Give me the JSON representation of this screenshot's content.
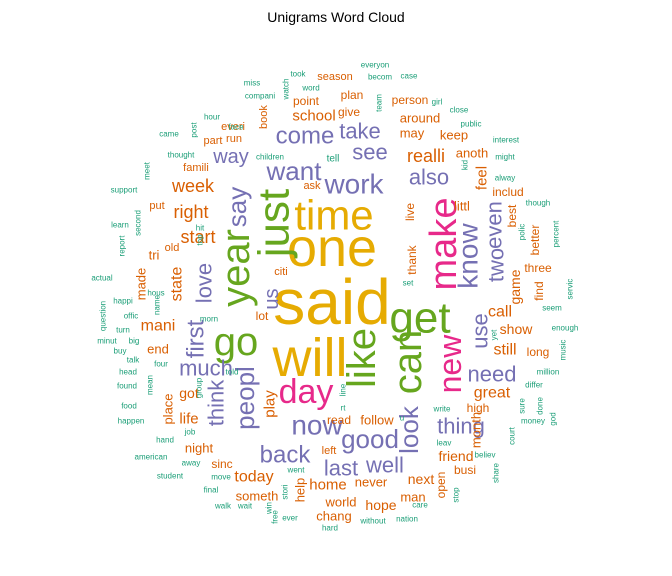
{
  "title": "Unigrams Word Cloud",
  "colors": {
    "gold": "#E6AB02",
    "green": "#66A61E",
    "pink": "#E7298A",
    "purple": "#7570B3",
    "orange": "#D95F02",
    "teal": "#1B9E77"
  },
  "words": [
    {
      "text": "said",
      "color": "gold"
    },
    {
      "text": "one",
      "color": "gold"
    },
    {
      "text": "will",
      "color": "gold"
    },
    {
      "text": "time",
      "color": "gold"
    },
    {
      "text": "like",
      "color": "green"
    },
    {
      "text": "get",
      "color": "green"
    },
    {
      "text": "just",
      "color": "green"
    },
    {
      "text": "can",
      "color": "green"
    },
    {
      "text": "go",
      "color": "green"
    },
    {
      "text": "year",
      "color": "green"
    },
    {
      "text": "make",
      "color": "pink"
    },
    {
      "text": "day",
      "color": "pink"
    },
    {
      "text": "new",
      "color": "pink"
    },
    {
      "text": "say",
      "color": "purple"
    },
    {
      "text": "know",
      "color": "purple"
    },
    {
      "text": "work",
      "color": "purple"
    },
    {
      "text": "want",
      "color": "purple"
    },
    {
      "text": "peopl",
      "color": "purple"
    },
    {
      "text": "now",
      "color": "purple"
    },
    {
      "text": "look",
      "color": "purple"
    },
    {
      "text": "good",
      "color": "purple"
    },
    {
      "text": "first",
      "color": "purple"
    },
    {
      "text": "come",
      "color": "purple"
    },
    {
      "text": "take",
      "color": "purple"
    },
    {
      "text": "see",
      "color": "purple"
    },
    {
      "text": "also",
      "color": "purple"
    },
    {
      "text": "back",
      "color": "purple"
    },
    {
      "text": "think",
      "color": "purple"
    },
    {
      "text": "love",
      "color": "purple"
    },
    {
      "text": "thing",
      "color": "purple"
    },
    {
      "text": "last",
      "color": "purple"
    },
    {
      "text": "well",
      "color": "purple"
    },
    {
      "text": "much",
      "color": "purple"
    },
    {
      "text": "need",
      "color": "purple"
    },
    {
      "text": "use",
      "color": "purple"
    },
    {
      "text": "two",
      "color": "purple"
    },
    {
      "text": "even",
      "color": "purple"
    },
    {
      "text": "way",
      "color": "purple"
    },
    {
      "text": "us",
      "color": "purple"
    },
    {
      "text": "realli",
      "color": "orange"
    },
    {
      "text": "week",
      "color": "orange"
    },
    {
      "text": "right",
      "color": "orange"
    },
    {
      "text": "start",
      "color": "orange"
    },
    {
      "text": "great",
      "color": "orange"
    },
    {
      "text": "still",
      "color": "orange"
    },
    {
      "text": "call",
      "color": "orange"
    },
    {
      "text": "show",
      "color": "orange"
    },
    {
      "text": "mani",
      "color": "orange"
    },
    {
      "text": "school",
      "color": "orange"
    },
    {
      "text": "state",
      "color": "orange"
    },
    {
      "text": "play",
      "color": "orange"
    },
    {
      "text": "home",
      "color": "orange"
    },
    {
      "text": "today",
      "color": "orange"
    },
    {
      "text": "life",
      "color": "orange"
    },
    {
      "text": "got",
      "color": "orange"
    },
    {
      "text": "made",
      "color": "orange"
    },
    {
      "text": "feel",
      "color": "orange"
    },
    {
      "text": "game",
      "color": "orange"
    },
    {
      "text": "follow",
      "color": "orange"
    },
    {
      "text": "friend",
      "color": "orange"
    },
    {
      "text": "next",
      "color": "orange"
    },
    {
      "text": "hope",
      "color": "orange"
    },
    {
      "text": "world",
      "color": "orange"
    },
    {
      "text": "night",
      "color": "orange"
    },
    {
      "text": "place",
      "color": "orange"
    },
    {
      "text": "never",
      "color": "orange"
    },
    {
      "text": "someth",
      "color": "orange"
    },
    {
      "text": "chang",
      "color": "orange"
    },
    {
      "text": "man",
      "color": "orange"
    },
    {
      "text": "help",
      "color": "orange"
    },
    {
      "text": "may",
      "color": "orange"
    },
    {
      "text": "around",
      "color": "orange"
    },
    {
      "text": "keep",
      "color": "orange"
    },
    {
      "text": "anoth",
      "color": "orange"
    },
    {
      "text": "tri",
      "color": "orange"
    },
    {
      "text": "end",
      "color": "orange"
    },
    {
      "text": "month",
      "color": "orange"
    },
    {
      "text": "find",
      "color": "orange"
    },
    {
      "text": "three",
      "color": "orange"
    },
    {
      "text": "long",
      "color": "orange"
    },
    {
      "text": "high",
      "color": "orange"
    },
    {
      "text": "littl",
      "color": "orange"
    },
    {
      "text": "includ",
      "color": "orange"
    },
    {
      "text": "live",
      "color": "orange"
    },
    {
      "text": "thank",
      "color": "orange"
    },
    {
      "text": "lot",
      "color": "orange"
    },
    {
      "text": "best",
      "color": "orange"
    },
    {
      "text": "better",
      "color": "orange"
    },
    {
      "text": "read",
      "color": "orange"
    },
    {
      "text": "busi",
      "color": "orange"
    },
    {
      "text": "sinc",
      "color": "orange"
    },
    {
      "text": "ask",
      "color": "orange"
    },
    {
      "text": "open",
      "color": "orange"
    },
    {
      "text": "put",
      "color": "orange"
    },
    {
      "text": "part",
      "color": "orange"
    },
    {
      "text": "everi",
      "color": "orange"
    },
    {
      "text": "run",
      "color": "orange"
    },
    {
      "text": "give",
      "color": "orange"
    },
    {
      "text": "point",
      "color": "orange"
    },
    {
      "text": "plan",
      "color": "orange"
    },
    {
      "text": "book",
      "color": "orange"
    },
    {
      "text": "person",
      "color": "orange"
    },
    {
      "text": "season",
      "color": "orange"
    },
    {
      "text": "famili",
      "color": "orange"
    },
    {
      "text": "citi",
      "color": "orange"
    },
    {
      "text": "left",
      "color": "orange"
    },
    {
      "text": "old",
      "color": "orange"
    },
    {
      "text": "tell",
      "color": "teal"
    },
    {
      "text": "everyon",
      "color": "teal"
    },
    {
      "text": "took",
      "color": "teal"
    },
    {
      "text": "becom",
      "color": "teal"
    },
    {
      "text": "case",
      "color": "teal"
    },
    {
      "text": "miss",
      "color": "teal"
    },
    {
      "text": "compani",
      "color": "teal"
    },
    {
      "text": "watch",
      "color": "teal"
    },
    {
      "text": "word",
      "color": "teal"
    },
    {
      "text": "team",
      "color": "teal"
    },
    {
      "text": "girl",
      "color": "teal"
    },
    {
      "text": "close",
      "color": "teal"
    },
    {
      "text": "public",
      "color": "teal"
    },
    {
      "text": "hour",
      "color": "teal"
    },
    {
      "text": "post",
      "color": "teal"
    },
    {
      "text": "came",
      "color": "teal"
    },
    {
      "text": "face",
      "color": "teal"
    },
    {
      "text": "interest",
      "color": "teal"
    },
    {
      "text": "might",
      "color": "teal"
    },
    {
      "text": "alway",
      "color": "teal"
    },
    {
      "text": "thought",
      "color": "teal"
    },
    {
      "text": "meet",
      "color": "teal"
    },
    {
      "text": "children",
      "color": "teal"
    },
    {
      "text": "kid",
      "color": "teal"
    },
    {
      "text": "support",
      "color": "teal"
    },
    {
      "text": "though",
      "color": "teal"
    },
    {
      "text": "second",
      "color": "teal"
    },
    {
      "text": "learn",
      "color": "teal"
    },
    {
      "text": "report",
      "color": "teal"
    },
    {
      "text": "hit",
      "color": "teal"
    },
    {
      "text": "top",
      "color": "teal"
    },
    {
      "text": "polic",
      "color": "teal"
    },
    {
      "text": "percent",
      "color": "teal"
    },
    {
      "text": "actual",
      "color": "teal"
    },
    {
      "text": "hous",
      "color": "teal"
    },
    {
      "text": "set",
      "color": "teal"
    },
    {
      "text": "servic",
      "color": "teal"
    },
    {
      "text": "question",
      "color": "teal"
    },
    {
      "text": "happi",
      "color": "teal"
    },
    {
      "text": "offic",
      "color": "teal"
    },
    {
      "text": "seem",
      "color": "teal"
    },
    {
      "text": "turn",
      "color": "teal"
    },
    {
      "text": "name",
      "color": "teal"
    },
    {
      "text": "minut",
      "color": "teal"
    },
    {
      "text": "big",
      "color": "teal"
    },
    {
      "text": "morn",
      "color": "teal"
    },
    {
      "text": "enough",
      "color": "teal"
    },
    {
      "text": "buy",
      "color": "teal"
    },
    {
      "text": "talk",
      "color": "teal"
    },
    {
      "text": "music",
      "color": "teal"
    },
    {
      "text": "head",
      "color": "teal"
    },
    {
      "text": "four",
      "color": "teal"
    },
    {
      "text": "told",
      "color": "teal"
    },
    {
      "text": "million",
      "color": "teal"
    },
    {
      "text": "found",
      "color": "teal"
    },
    {
      "text": "mean",
      "color": "teal"
    },
    {
      "text": "group",
      "color": "teal"
    },
    {
      "text": "differ",
      "color": "teal"
    },
    {
      "text": "food",
      "color": "teal"
    },
    {
      "text": "line",
      "color": "teal"
    },
    {
      "text": "rt",
      "color": "teal"
    },
    {
      "text": "write",
      "color": "teal"
    },
    {
      "text": "sure",
      "color": "teal"
    },
    {
      "text": "done",
      "color": "teal"
    },
    {
      "text": "happen",
      "color": "teal"
    },
    {
      "text": "job",
      "color": "teal"
    },
    {
      "text": "u",
      "color": "teal"
    },
    {
      "text": "god",
      "color": "teal"
    },
    {
      "text": "money",
      "color": "teal"
    },
    {
      "text": "hand",
      "color": "teal"
    },
    {
      "text": "leav",
      "color": "teal"
    },
    {
      "text": "court",
      "color": "teal"
    },
    {
      "text": "american",
      "color": "teal"
    },
    {
      "text": "away",
      "color": "teal"
    },
    {
      "text": "believ",
      "color": "teal"
    },
    {
      "text": "student",
      "color": "teal"
    },
    {
      "text": "move",
      "color": "teal"
    },
    {
      "text": "went",
      "color": "teal"
    },
    {
      "text": "share",
      "color": "teal"
    },
    {
      "text": "final",
      "color": "teal"
    },
    {
      "text": "stori",
      "color": "teal"
    },
    {
      "text": "stop",
      "color": "teal"
    },
    {
      "text": "yet",
      "color": "teal"
    },
    {
      "text": "walk",
      "color": "teal"
    },
    {
      "text": "wait",
      "color": "teal"
    },
    {
      "text": "win",
      "color": "teal"
    },
    {
      "text": "free",
      "color": "teal"
    },
    {
      "text": "ever",
      "color": "teal"
    },
    {
      "text": "care",
      "color": "teal"
    },
    {
      "text": "without",
      "color": "teal"
    },
    {
      "text": "nation",
      "color": "teal"
    },
    {
      "text": "hard",
      "color": "teal"
    }
  ]
}
